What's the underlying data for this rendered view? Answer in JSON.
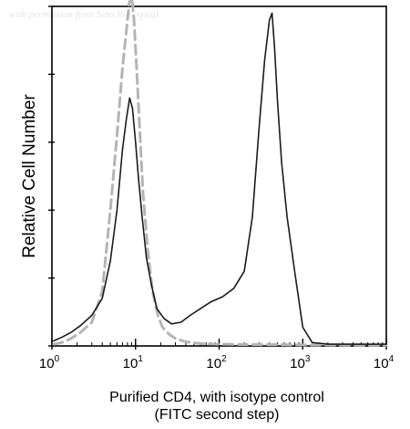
{
  "watermark": "with permission from Sino Biological",
  "chart_data": {
    "type": "line",
    "title": "",
    "ylabel": "Relative Cell Number",
    "xlabel_lines": [
      "Purified CD4, with isotype control",
      "(FITC second step)"
    ],
    "x_scale": "log",
    "xlim": [
      1,
      10000
    ],
    "ylim": [
      0,
      100
    ],
    "x_ticks": [
      {
        "value": 1,
        "base": "10",
        "exp": "0"
      },
      {
        "value": 10,
        "base": "10",
        "exp": "1"
      },
      {
        "value": 100,
        "base": "10",
        "exp": "2"
      },
      {
        "value": 1000,
        "base": "10",
        "exp": "3"
      },
      {
        "value": 10000,
        "base": "10",
        "exp": "4"
      }
    ],
    "y_ticks": [
      0,
      20,
      40,
      60,
      80,
      100
    ],
    "series": [
      {
        "color": "#b4b4b4",
        "style": "dashed",
        "x": [
          1.05,
          1.3,
          1.7,
          2.2,
          3.0,
          4.0,
          5.0,
          6.0,
          7.0,
          7.8,
          8.4,
          9.0,
          9.6,
          10.3,
          11.2,
          12.3,
          14.0,
          16.0,
          18.5,
          21.0,
          25.0,
          30.0,
          40.0,
          60.0,
          100.0,
          200.0,
          500.0,
          1000.0,
          2000.0,
          5000.0,
          10000.0
        ],
        "y": [
          0.5,
          1.0,
          2.2,
          4.0,
          7.0,
          16.0,
          40.0,
          62.0,
          82.0,
          93.0,
          101.0,
          103.0,
          96.0,
          82.0,
          64.0,
          45.0,
          28.0,
          16.0,
          9.0,
          5.5,
          3.5,
          2.2,
          1.2,
          0.7,
          0.5,
          0.4,
          0.4,
          0.3,
          0.3,
          0.2,
          0.2
        ]
      },
      {
        "color": "#1a1a1a",
        "style": "solid",
        "x": [
          1.05,
          1.3,
          1.7,
          2.2,
          3.0,
          4.0,
          5.0,
          6.0,
          7.0,
          7.8,
          8.5,
          9.2,
          10.0,
          10.8,
          12.0,
          13.5,
          15.5,
          18.0,
          22.0,
          27.0,
          35.0,
          45.0,
          60.0,
          80.0,
          110.0,
          150.0,
          200.0,
          250.0,
          300.0,
          350.0,
          400.0,
          430.0,
          460.0,
          500.0,
          560.0,
          650.0,
          800.0,
          1000.0,
          1300.0,
          2000.0,
          4000.0,
          10000.0
        ],
        "y": [
          1.5,
          2.5,
          4.0,
          6.0,
          9.0,
          14.0,
          25.0,
          40.0,
          58.0,
          67.0,
          73.0,
          70.0,
          60.0,
          50.0,
          38.0,
          26.0,
          18.0,
          11.0,
          8.0,
          6.5,
          7.0,
          9.0,
          11.0,
          13.0,
          14.5,
          17.0,
          22.0,
          38.0,
          64.0,
          84.0,
          96.0,
          98.0,
          88.0,
          72.0,
          54.0,
          38.0,
          22.0,
          5.5,
          1.0,
          0.5,
          0.5,
          0.5
        ]
      }
    ]
  }
}
